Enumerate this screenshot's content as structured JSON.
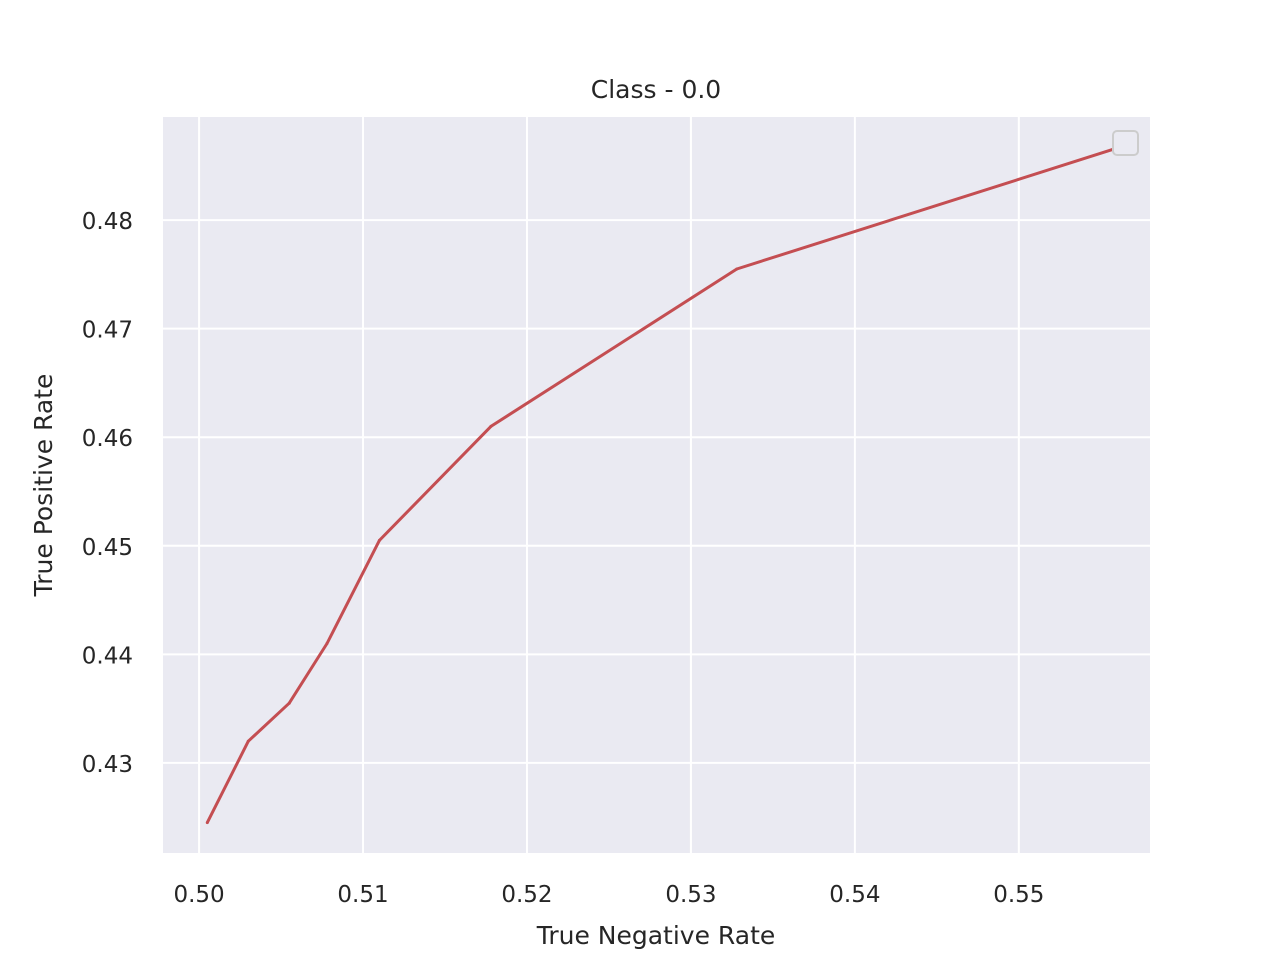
{
  "chart_data": {
    "type": "line",
    "title": "Class - 0.0",
    "xlabel": "True Negative Rate",
    "ylabel": "True Positive Rate",
    "xlim": [
      0.4978,
      0.558
    ],
    "ylim": [
      0.4217,
      0.4895
    ],
    "xticks": [
      0.5,
      0.51,
      0.52,
      0.53,
      0.54,
      0.55
    ],
    "xtick_labels": [
      "0.50",
      "0.51",
      "0.52",
      "0.53",
      "0.54",
      "0.55"
    ],
    "yticks": [
      0.43,
      0.44,
      0.45,
      0.46,
      0.47,
      0.48
    ],
    "ytick_labels": [
      "0.43",
      "0.44",
      "0.45",
      "0.46",
      "0.47",
      "0.48"
    ],
    "grid": true,
    "legend": {
      "placement": "top-right",
      "entries": []
    },
    "series": [
      {
        "color": "#c44e52",
        "x": [
          0.5005,
          0.503,
          0.5055,
          0.5078,
          0.511,
          0.5178,
          0.5328,
          0.5557
        ],
        "y": [
          0.4245,
          0.432,
          0.4355,
          0.441,
          0.4505,
          0.461,
          0.4755,
          0.4865
        ]
      }
    ]
  }
}
